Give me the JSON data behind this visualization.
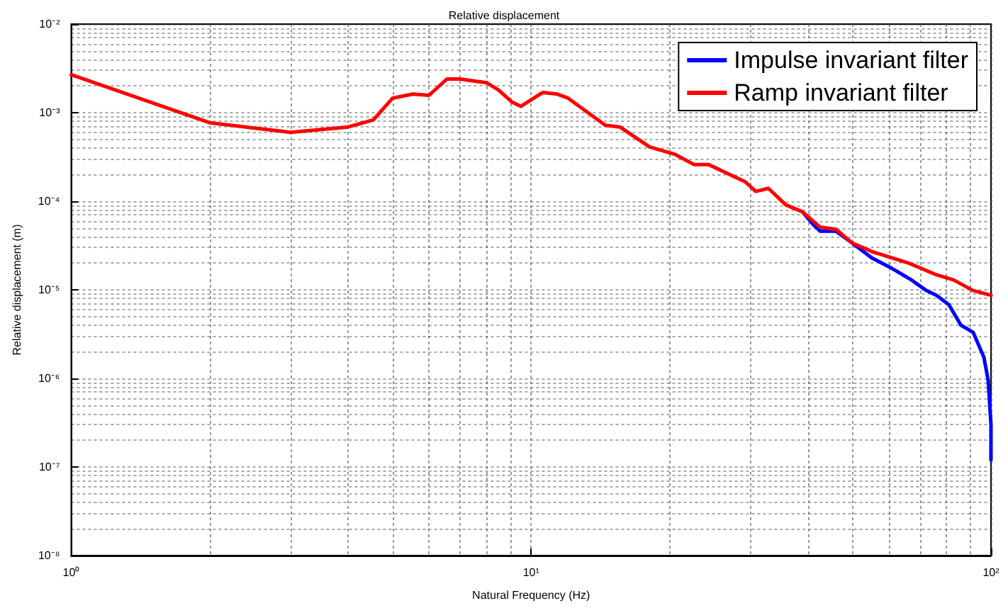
{
  "chart_data": {
    "type": "line",
    "title": "Relative displacement",
    "xlabel": "Natural Frequency (Hz)",
    "ylabel": "Relative displacement (m)",
    "log": "xy",
    "grid": true,
    "legend": "top right",
    "marker": "none",
    "line_style": "solid",
    "xlim": [
      1,
      100
    ],
    "ylim": [
      1e-08,
      0.01
    ],
    "xticks": [
      {
        "value": 1,
        "label": "10⁰"
      },
      {
        "value": 10,
        "label": "10¹"
      },
      {
        "value": 100,
        "label": "10²"
      }
    ],
    "yticks": [
      {
        "value": 1e-08,
        "label": "10⁻⁸"
      },
      {
        "value": 1e-07,
        "label": "10⁻⁷"
      },
      {
        "value": 1e-06,
        "label": "10⁻⁶"
      },
      {
        "value": 1e-05,
        "label": "10⁻⁵"
      },
      {
        "value": 0.0001,
        "label": "10⁻⁴"
      },
      {
        "value": 0.001,
        "label": "10⁻³"
      },
      {
        "value": 0.01,
        "label": "10⁻²"
      }
    ],
    "series": [
      {
        "name": "Impulse invariant filter",
        "color": "#0000ff",
        "x": [
          38.9,
          41,
          42.5,
          46,
          49.8,
          55,
          60.5,
          67.2,
          72.4,
          76,
          81,
          86,
          91.5,
          96.5,
          98.6,
          100,
          100
        ],
        "values": [
          7.6e-05,
          5.5e-05,
          4.6e-05,
          4.6e-05,
          3.4e-05,
          2.3e-05,
          1.78e-05,
          1.29e-05,
          9.8e-06,
          8.7e-06,
          6.8e-06,
          4e-06,
          3.3e-06,
          1.74e-06,
          9.5e-07,
          3e-07,
          1.2e-07
        ]
      },
      {
        "name": "Ramp invariant filter",
        "color": "#ff0000",
        "x": [
          1,
          2,
          3,
          4,
          4.54,
          5,
          5.53,
          6,
          6.56,
          7,
          8,
          8.5,
          9.1,
          9.5,
          10.6,
          11.4,
          12,
          14.5,
          15.6,
          18.1,
          20.5,
          22.6,
          24.3,
          29.2,
          30.8,
          32.8,
          35.8,
          38.9,
          42.5,
          46.1,
          49.8,
          55.1,
          66.3,
          76,
          83,
          91.5,
          100
        ],
        "values": [
          0.00268,
          0.00077,
          0.0006,
          0.00069,
          0.00083,
          0.00146,
          0.00162,
          0.00157,
          0.0024,
          0.0024,
          0.00218,
          0.0018,
          0.00131,
          0.00118,
          0.00169,
          0.00162,
          0.00147,
          0.00072,
          0.00069,
          0.00041,
          0.00034,
          0.00026,
          0.00026,
          0.000166,
          0.000129,
          0.00014,
          9.1e-05,
          7.6e-05,
          5.1e-05,
          4.8e-05,
          3.4e-05,
          2.7e-05,
          2e-05,
          1.48e-05,
          1.29e-05,
          9.8e-06,
          8.7e-06
        ]
      }
    ]
  }
}
